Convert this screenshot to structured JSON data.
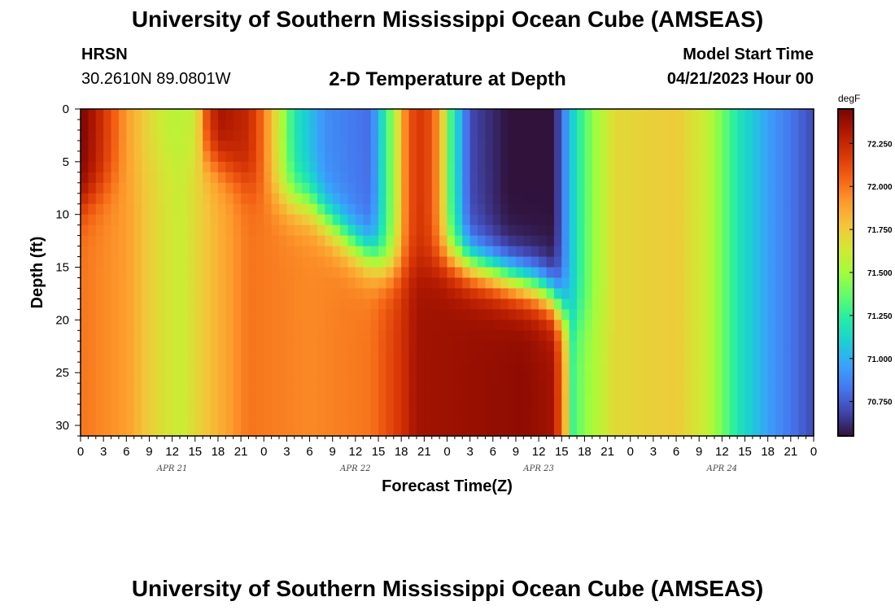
{
  "header": {
    "main_title": "University of Southern Mississippi Ocean Cube (AMSEAS)",
    "station_name": "HRSN",
    "station_coords": "30.2610N  89.0801W",
    "plot_title": "2-D Temperature at Depth",
    "model_start_label": "Model Start Time",
    "model_start_value": "04/21/2023 Hour 00"
  },
  "footer": {
    "title": "University of Southern Mississippi Ocean Cube (AMSEAS)"
  },
  "colors": {
    "colormap": [
      "#30123b",
      "#4145ab",
      "#4675ed",
      "#39a2fc",
      "#1bcfd4",
      "#24eca6",
      "#61fc6c",
      "#a4fc3b",
      "#d1e834",
      "#f3c63a",
      "#fe9b2d",
      "#f36315",
      "#d93806",
      "#b11901",
      "#7a0402"
    ]
  },
  "chart_data": {
    "type": "heatmap",
    "title": "2-D Temperature at Depth",
    "xlabel": "Forecast Time(Z)",
    "ylabel": "Depth (ft)",
    "x_range_hours": [
      0,
      96
    ],
    "x_tick_hours": [
      0,
      3,
      6,
      9,
      12,
      15,
      18,
      21,
      24,
      27,
      30,
      33,
      36,
      39,
      42,
      45,
      48,
      51,
      54,
      57,
      60,
      63,
      66,
      69,
      72,
      75,
      78,
      81,
      84,
      87,
      90,
      93,
      96
    ],
    "x_tick_labels": [
      "0",
      "3",
      "6",
      "9",
      "12",
      "15",
      "18",
      "21",
      "0",
      "3",
      "6",
      "9",
      "12",
      "15",
      "18",
      "21",
      "0",
      "3",
      "6",
      "9",
      "12",
      "15",
      "18",
      "21",
      "0",
      "3",
      "6",
      "9",
      "12",
      "15",
      "18",
      "21",
      "0"
    ],
    "date_labels": [
      {
        "hour": 12,
        "label": "APR 21"
      },
      {
        "hour": 36,
        "label": "APR 22"
      },
      {
        "hour": 60,
        "label": "APR 23"
      },
      {
        "hour": 84,
        "label": "APR 24"
      }
    ],
    "y_range_ft": [
      0,
      31
    ],
    "y_ticks": [
      0,
      5,
      10,
      15,
      20,
      25,
      30
    ],
    "y_tick_labels": [
      "0",
      "5",
      "10",
      "15",
      "20",
      "25",
      "30"
    ],
    "colorbar": {
      "unit": "degF",
      "min": 70.55,
      "max": 72.45,
      "ticks": [
        70.75,
        71.0,
        71.25,
        71.5,
        71.75,
        72.0,
        72.25
      ],
      "tick_labels": [
        "70.750",
        "71.000",
        "71.250",
        "71.500",
        "71.750",
        "72.000",
        "72.250"
      ]
    },
    "surface_profile_degF": [
      [
        0,
        72.45
      ],
      [
        2,
        72.3
      ],
      [
        4,
        72.1
      ],
      [
        6,
        71.9
      ],
      [
        9,
        71.7
      ],
      [
        12,
        71.55
      ],
      [
        15,
        71.6
      ],
      [
        16.5,
        72.1
      ],
      [
        18,
        72.35
      ],
      [
        22,
        72.25
      ],
      [
        24,
        72.0
      ],
      [
        26,
        71.6
      ],
      [
        28,
        71.2
      ],
      [
        32,
        70.9
      ],
      [
        38,
        70.8
      ],
      [
        41,
        71.5
      ],
      [
        43,
        72.1
      ],
      [
        45,
        72.2
      ],
      [
        47,
        71.9
      ],
      [
        48.5,
        71.3
      ],
      [
        51,
        70.7
      ],
      [
        56,
        70.55
      ],
      [
        62,
        70.55
      ],
      [
        63.5,
        70.9
      ],
      [
        65,
        71.2
      ],
      [
        67,
        71.45
      ],
      [
        70,
        71.7
      ],
      [
        78,
        71.75
      ],
      [
        82,
        71.6
      ],
      [
        86,
        71.2
      ],
      [
        90,
        70.95
      ],
      [
        96,
        70.7
      ]
    ],
    "deep_profile_degF": [
      [
        0,
        72.0
      ],
      [
        6,
        71.9
      ],
      [
        10,
        71.7
      ],
      [
        13,
        71.6
      ],
      [
        16,
        71.75
      ],
      [
        22,
        72.0
      ],
      [
        30,
        71.95
      ],
      [
        38,
        72.0
      ],
      [
        42,
        72.2
      ],
      [
        44,
        72.35
      ],
      [
        58,
        72.4
      ],
      [
        62,
        72.35
      ],
      [
        63.5,
        71.8
      ],
      [
        64.5,
        71.3
      ],
      [
        66,
        71.45
      ],
      [
        70,
        71.7
      ],
      [
        78,
        71.75
      ],
      [
        82,
        71.6
      ],
      [
        86,
        71.2
      ],
      [
        90,
        70.95
      ],
      [
        96,
        70.7
      ]
    ],
    "transition_depth_ft": [
      [
        0,
        9
      ],
      [
        12,
        4
      ],
      [
        18,
        5
      ],
      [
        24,
        8
      ],
      [
        30,
        9
      ],
      [
        36,
        13
      ],
      [
        40,
        15
      ],
      [
        44,
        15
      ],
      [
        48,
        14
      ],
      [
        52,
        15
      ],
      [
        56,
        16
      ],
      [
        60,
        17
      ],
      [
        62,
        18
      ],
      [
        64,
        20
      ],
      [
        66,
        20
      ],
      [
        96,
        20
      ]
    ],
    "transition_width_ft": 2.5
  }
}
